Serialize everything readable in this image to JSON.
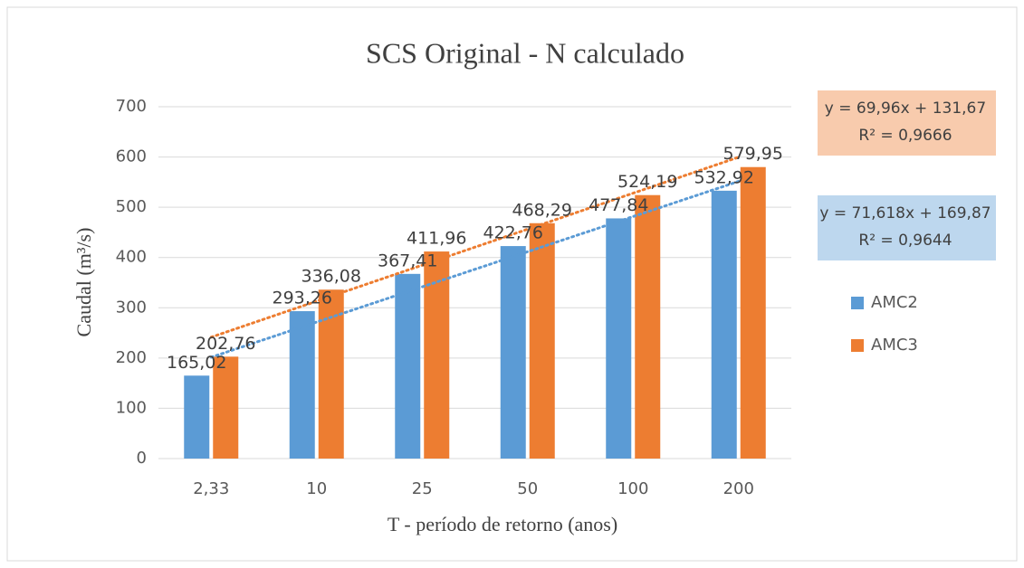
{
  "chart_data": {
    "type": "bar",
    "title": "SCS Original - N calculado",
    "x_label": "T - período de retorno (anos)",
    "y_label": "Caudal (m³/s)",
    "categories": [
      "2,33",
      "10",
      "25",
      "50",
      "100",
      "200"
    ],
    "series": [
      {
        "name": "AMC2",
        "color": "#5b9bd5",
        "values": [
          165.02,
          293.26,
          367.41,
          422.76,
          477.84,
          532.92
        ],
        "value_labels": [
          "165,02",
          "293,26",
          "367,41",
          "422,76",
          "477,84",
          "532,92"
        ]
      },
      {
        "name": "AMC3",
        "color": "#ed7d31",
        "values": [
          202.76,
          336.08,
          411.96,
          468.29,
          524.19,
          579.95
        ],
        "value_labels": [
          "202,76",
          "336,08",
          "411,96",
          "468,29",
          "524,19",
          "579,95"
        ]
      }
    ],
    "trendline": "linear",
    "annotations": [
      {
        "lines": [
          "y = 69,96x + 131,67",
          "R² = 0,9666"
        ],
        "color": "#f8cbad"
      },
      {
        "lines": [
          "y = 71,618x + 169,87",
          "R² = 0,9644"
        ],
        "color": "#bdd7ee"
      }
    ],
    "ylim": [
      0,
      700
    ],
    "yticks": [
      0,
      100,
      200,
      300,
      400,
      500,
      600,
      700
    ],
    "grid": true,
    "legend": "right"
  }
}
